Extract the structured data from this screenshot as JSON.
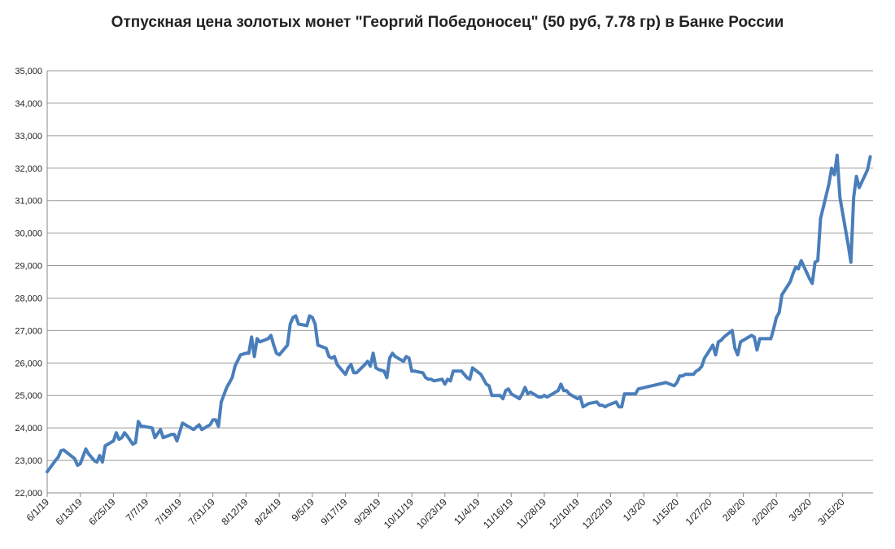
{
  "chart_data": {
    "type": "line",
    "title": "Отпускная цена золотых монет \"Георгий Победоносец\" (50 руб, 7.78 гр) в Банке России",
    "xlabel": "",
    "ylabel": "",
    "ylim": [
      22000,
      35000
    ],
    "y_ticks": [
      22000,
      23000,
      24000,
      25000,
      26000,
      27000,
      28000,
      29000,
      30000,
      31000,
      32000,
      33000,
      34000,
      35000
    ],
    "y_tick_labels": [
      "22,000",
      "23,000",
      "24,000",
      "25,000",
      "26,000",
      "27,000",
      "28,000",
      "29,000",
      "30,000",
      "31,000",
      "32,000",
      "33,000",
      "34,000",
      "35,000"
    ],
    "x_range": [
      "2019-06-01",
      "2020-03-26"
    ],
    "x_tick_labels": [
      {
        "date": "2019-06-01",
        "label": "6/1/19"
      },
      {
        "date": "2019-06-13",
        "label": "6/13/19"
      },
      {
        "date": "2019-06-25",
        "label": "6/25/19"
      },
      {
        "date": "2019-07-07",
        "label": "7/7/19"
      },
      {
        "date": "2019-07-19",
        "label": "7/19/19"
      },
      {
        "date": "2019-07-31",
        "label": "7/31/19"
      },
      {
        "date": "2019-08-12",
        "label": "8/12/19"
      },
      {
        "date": "2019-08-24",
        "label": "8/24/19"
      },
      {
        "date": "2019-09-05",
        "label": "9/5/19"
      },
      {
        "date": "2019-09-17",
        "label": "9/17/19"
      },
      {
        "date": "2019-09-29",
        "label": "9/29/19"
      },
      {
        "date": "2019-10-11",
        "label": "10/11/19"
      },
      {
        "date": "2019-10-23",
        "label": "10/23/19"
      },
      {
        "date": "2019-11-04",
        "label": "11/4/19"
      },
      {
        "date": "2019-11-16",
        "label": "11/16/19"
      },
      {
        "date": "2019-11-28",
        "label": "11/28/19"
      },
      {
        "date": "2019-12-10",
        "label": "12/10/19"
      },
      {
        "date": "2019-12-22",
        "label": "12/22/19"
      },
      {
        "date": "2020-01-03",
        "label": "1/3/20"
      },
      {
        "date": "2020-01-15",
        "label": "1/15/20"
      },
      {
        "date": "2020-01-27",
        "label": "1/27/20"
      },
      {
        "date": "2020-02-08",
        "label": "2/8/20"
      },
      {
        "date": "2020-02-20",
        "label": "2/20/20"
      },
      {
        "date": "2020-03-03",
        "label": "3/3/20"
      },
      {
        "date": "2020-03-15",
        "label": "3/15/20"
      }
    ],
    "grid": true,
    "legend": "none",
    "line_color": "#4a7ebb",
    "series": [
      {
        "points": [
          [
            "2019-06-01",
            22650
          ],
          [
            "2019-06-04",
            23000
          ],
          [
            "2019-06-05",
            23100
          ],
          [
            "2019-06-06",
            23300
          ],
          [
            "2019-06-07",
            23320
          ],
          [
            "2019-06-08",
            23250
          ],
          [
            "2019-06-11",
            23050
          ],
          [
            "2019-06-12",
            22850
          ],
          [
            "2019-06-13",
            22900
          ],
          [
            "2019-06-15",
            23350
          ],
          [
            "2019-06-16",
            23200
          ],
          [
            "2019-06-18",
            23000
          ],
          [
            "2019-06-19",
            22950
          ],
          [
            "2019-06-20",
            23150
          ],
          [
            "2019-06-21",
            22950
          ],
          [
            "2019-06-22",
            23450
          ],
          [
            "2019-06-25",
            23600
          ],
          [
            "2019-06-26",
            23850
          ],
          [
            "2019-06-27",
            23650
          ],
          [
            "2019-06-28",
            23700
          ],
          [
            "2019-06-29",
            23850
          ],
          [
            "2019-06-30",
            23750
          ],
          [
            "2019-07-02",
            23500
          ],
          [
            "2019-07-03",
            23550
          ],
          [
            "2019-07-04",
            24200
          ],
          [
            "2019-07-05",
            24050
          ],
          [
            "2019-07-06",
            24050
          ],
          [
            "2019-07-09",
            24000
          ],
          [
            "2019-07-10",
            23700
          ],
          [
            "2019-07-12",
            23950
          ],
          [
            "2019-07-13",
            23700
          ],
          [
            "2019-07-16",
            23800
          ],
          [
            "2019-07-17",
            23800
          ],
          [
            "2019-07-18",
            23600
          ],
          [
            "2019-07-20",
            24150
          ],
          [
            "2019-07-22",
            24050
          ],
          [
            "2019-07-24",
            23950
          ],
          [
            "2019-07-26",
            24100
          ],
          [
            "2019-07-27",
            23950
          ],
          [
            "2019-07-30",
            24100
          ],
          [
            "2019-07-31",
            24250
          ],
          [
            "2019-08-01",
            24250
          ],
          [
            "2019-08-02",
            24050
          ],
          [
            "2019-08-03",
            24800
          ],
          [
            "2019-08-05",
            25250
          ],
          [
            "2019-08-07",
            25550
          ],
          [
            "2019-08-08",
            25900
          ],
          [
            "2019-08-10",
            26250
          ],
          [
            "2019-08-12",
            26300
          ],
          [
            "2019-08-13",
            26300
          ],
          [
            "2019-08-14",
            26800
          ],
          [
            "2019-08-15",
            26200
          ],
          [
            "2019-08-16",
            26750
          ],
          [
            "2019-08-17",
            26650
          ],
          [
            "2019-08-20",
            26750
          ],
          [
            "2019-08-21",
            26850
          ],
          [
            "2019-08-22",
            26550
          ],
          [
            "2019-08-23",
            26300
          ],
          [
            "2019-08-24",
            26250
          ],
          [
            "2019-08-27",
            26550
          ],
          [
            "2019-08-28",
            27200
          ],
          [
            "2019-08-29",
            27400
          ],
          [
            "2019-08-30",
            27450
          ],
          [
            "2019-08-31",
            27200
          ],
          [
            "2019-09-03",
            27150
          ],
          [
            "2019-09-04",
            27450
          ],
          [
            "2019-09-05",
            27400
          ],
          [
            "2019-09-06",
            27200
          ],
          [
            "2019-09-07",
            26550
          ],
          [
            "2019-09-10",
            26450
          ],
          [
            "2019-09-11",
            26200
          ],
          [
            "2019-09-12",
            26150
          ],
          [
            "2019-09-13",
            26200
          ],
          [
            "2019-09-14",
            25950
          ],
          [
            "2019-09-17",
            25650
          ],
          [
            "2019-09-18",
            25850
          ],
          [
            "2019-09-19",
            25950
          ],
          [
            "2019-09-20",
            25700
          ],
          [
            "2019-09-21",
            25700
          ],
          [
            "2019-09-24",
            25950
          ],
          [
            "2019-09-25",
            26050
          ],
          [
            "2019-09-26",
            25900
          ],
          [
            "2019-09-27",
            26300
          ],
          [
            "2019-09-28",
            25850
          ],
          [
            "2019-09-29",
            25800
          ],
          [
            "2019-10-01",
            25750
          ],
          [
            "2019-10-02",
            25550
          ],
          [
            "2019-10-03",
            26150
          ],
          [
            "2019-10-04",
            26300
          ],
          [
            "2019-10-05",
            26200
          ],
          [
            "2019-10-08",
            26050
          ],
          [
            "2019-10-09",
            26200
          ],
          [
            "2019-10-10",
            26150
          ],
          [
            "2019-10-11",
            25750
          ],
          [
            "2019-10-12",
            25750
          ],
          [
            "2019-10-15",
            25700
          ],
          [
            "2019-10-16",
            25550
          ],
          [
            "2019-10-17",
            25500
          ],
          [
            "2019-10-18",
            25500
          ],
          [
            "2019-10-19",
            25450
          ],
          [
            "2019-10-22",
            25500
          ],
          [
            "2019-10-23",
            25350
          ],
          [
            "2019-10-24",
            25500
          ],
          [
            "2019-10-25",
            25450
          ],
          [
            "2019-10-26",
            25750
          ],
          [
            "2019-10-29",
            25750
          ],
          [
            "2019-10-30",
            25650
          ],
          [
            "2019-10-31",
            25550
          ],
          [
            "2019-11-01",
            25500
          ],
          [
            "2019-11-02",
            25850
          ],
          [
            "2019-11-05",
            25650
          ],
          [
            "2019-11-06",
            25500
          ],
          [
            "2019-11-07",
            25350
          ],
          [
            "2019-11-08",
            25300
          ],
          [
            "2019-11-09",
            25000
          ],
          [
            "2019-11-12",
            25000
          ],
          [
            "2019-11-13",
            24900
          ],
          [
            "2019-11-14",
            25150
          ],
          [
            "2019-11-15",
            25200
          ],
          [
            "2019-11-16",
            25050
          ],
          [
            "2019-11-19",
            24900
          ],
          [
            "2019-11-20",
            25050
          ],
          [
            "2019-11-21",
            25250
          ],
          [
            "2019-11-22",
            25050
          ],
          [
            "2019-11-23",
            25100
          ],
          [
            "2019-11-26",
            24950
          ],
          [
            "2019-11-27",
            24950
          ],
          [
            "2019-11-28",
            25000
          ],
          [
            "2019-11-29",
            24950
          ],
          [
            "2019-11-30",
            25000
          ],
          [
            "2019-12-03",
            25150
          ],
          [
            "2019-12-04",
            25350
          ],
          [
            "2019-12-05",
            25150
          ],
          [
            "2019-12-06",
            25150
          ],
          [
            "2019-12-07",
            25050
          ],
          [
            "2019-12-10",
            24900
          ],
          [
            "2019-12-11",
            24950
          ],
          [
            "2019-12-12",
            24650
          ],
          [
            "2019-12-13",
            24700
          ],
          [
            "2019-12-14",
            24750
          ],
          [
            "2019-12-17",
            24800
          ],
          [
            "2019-12-18",
            24700
          ],
          [
            "2019-12-19",
            24700
          ],
          [
            "2019-12-20",
            24650
          ],
          [
            "2019-12-21",
            24700
          ],
          [
            "2019-12-24",
            24800
          ],
          [
            "2019-12-25",
            24650
          ],
          [
            "2019-12-26",
            24650
          ],
          [
            "2019-12-27",
            25050
          ],
          [
            "2019-12-28",
            25050
          ],
          [
            "2019-12-31",
            25050
          ],
          [
            "2020-01-01",
            25200
          ],
          [
            "2020-01-11",
            25400
          ],
          [
            "2020-01-14",
            25300
          ],
          [
            "2020-01-15",
            25400
          ],
          [
            "2020-01-16",
            25600
          ],
          [
            "2020-01-17",
            25600
          ],
          [
            "2020-01-18",
            25650
          ],
          [
            "2020-01-21",
            25650
          ],
          [
            "2020-01-22",
            25750
          ],
          [
            "2020-01-23",
            25800
          ],
          [
            "2020-01-24",
            25900
          ],
          [
            "2020-01-25",
            26150
          ],
          [
            "2020-01-28",
            26550
          ],
          [
            "2020-01-29",
            26250
          ],
          [
            "2020-01-30",
            26650
          ],
          [
            "2020-01-31",
            26700
          ],
          [
            "2020-02-01",
            26800
          ],
          [
            "2020-02-04",
            27000
          ],
          [
            "2020-02-05",
            26450
          ],
          [
            "2020-02-06",
            26250
          ],
          [
            "2020-02-07",
            26650
          ],
          [
            "2020-02-08",
            26700
          ],
          [
            "2020-02-11",
            26850
          ],
          [
            "2020-02-12",
            26800
          ],
          [
            "2020-02-13",
            26400
          ],
          [
            "2020-02-14",
            26750
          ],
          [
            "2020-02-15",
            26750
          ],
          [
            "2020-02-18",
            26750
          ],
          [
            "2020-02-19",
            27050
          ],
          [
            "2020-02-20",
            27400
          ],
          [
            "2020-02-21",
            27550
          ],
          [
            "2020-02-22",
            28100
          ],
          [
            "2020-02-25",
            28500
          ],
          [
            "2020-02-26",
            28750
          ],
          [
            "2020-02-27",
            28950
          ],
          [
            "2020-02-28",
            28900
          ],
          [
            "2020-02-29",
            29150
          ],
          [
            "2020-03-03",
            28600
          ],
          [
            "2020-03-04",
            28450
          ],
          [
            "2020-03-05",
            29100
          ],
          [
            "2020-03-06",
            29150
          ],
          [
            "2020-03-07",
            30450
          ],
          [
            "2020-03-10",
            31500
          ],
          [
            "2020-03-11",
            32000
          ],
          [
            "2020-03-12",
            31800
          ],
          [
            "2020-03-13",
            32400
          ],
          [
            "2020-03-14",
            31100
          ],
          [
            "2020-03-17",
            29650
          ],
          [
            "2020-03-18",
            29100
          ],
          [
            "2020-03-19",
            31100
          ],
          [
            "2020-03-20",
            31750
          ],
          [
            "2020-03-21",
            31400
          ],
          [
            "2020-03-24",
            31950
          ],
          [
            "2020-03-25",
            32350
          ]
        ]
      }
    ]
  }
}
